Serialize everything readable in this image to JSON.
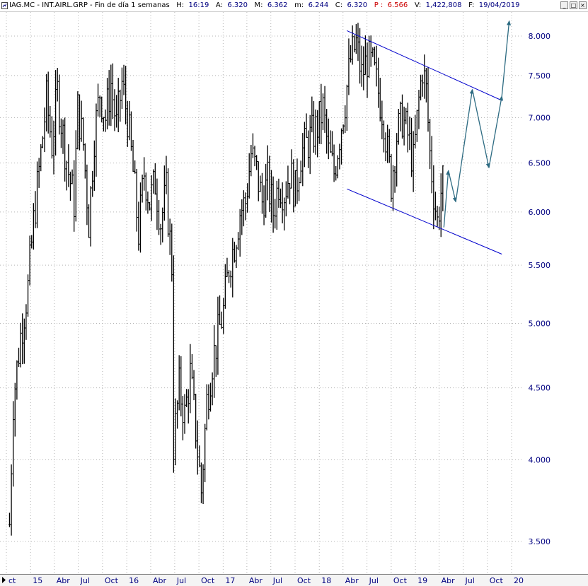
{
  "window": {
    "title_parts": {
      "symbol": "IAG.MC - INT.AIRL.GRP - Fin de día 1 semanas",
      "h_label": "H:",
      "h_value": "16:19",
      "a_label": "A:",
      "a_value": "6.320",
      "m_label": "M:",
      "m_value": "6.362",
      "mm_label": "m:",
      "mm_value": "6.244",
      "c_label": "C:",
      "c_value": "6.320",
      "p_label": "P :",
      "p_value": "6.566",
      "v_label": "V:",
      "v_value": "1,422,808",
      "f_label": "F:",
      "f_value": "19/04/2019"
    },
    "buttons": {
      "minimize": "_",
      "maximize": "□",
      "close": "×"
    }
  },
  "colors": {
    "background": "#ffffff",
    "grid": "#b4b4b4",
    "price": "#000000",
    "channel": "#0000cc",
    "projection": "#2d6b82",
    "axis_text": "#000080",
    "title_value": "#000080",
    "title_p": "#cc0000"
  },
  "chart_data": {
    "type": "ohlc",
    "scale": "log",
    "ylim": [
      3.4,
      8.35
    ],
    "yticks": [
      "3.500",
      "4.000",
      "4.500",
      "5.000",
      "5.500",
      "6.000",
      "6.500",
      "7.000",
      "7.500",
      "8.000"
    ],
    "ytick_values": [
      3.5,
      4.0,
      4.5,
      5.0,
      5.5,
      6.0,
      6.5,
      7.0,
      7.5,
      8.0
    ],
    "xticks": [
      {
        "label": "ct",
        "date": "2014-10"
      },
      {
        "label": "15",
        "date": "2015-01"
      },
      {
        "label": "Abr",
        "date": "2015-04"
      },
      {
        "label": "Jul",
        "date": "2015-07"
      },
      {
        "label": "Oct",
        "date": "2015-10"
      },
      {
        "label": "16",
        "date": "2016-01"
      },
      {
        "label": "Abr",
        "date": "2016-04"
      },
      {
        "label": "Jul",
        "date": "2016-07"
      },
      {
        "label": "Oct",
        "date": "2016-10"
      },
      {
        "label": "17",
        "date": "2017-01"
      },
      {
        "label": "Abr",
        "date": "2017-04"
      },
      {
        "label": "Jul",
        "date": "2017-07"
      },
      {
        "label": "Oct",
        "date": "2017-10"
      },
      {
        "label": "18",
        "date": "2018-01"
      },
      {
        "label": "Abr",
        "date": "2018-04"
      },
      {
        "label": "Jul",
        "date": "2018-07"
      },
      {
        "label": "Oct",
        "date": "2018-10"
      },
      {
        "label": "19",
        "date": "2019-01"
      },
      {
        "label": "Abr",
        "date": "2019-04"
      },
      {
        "label": "Jul",
        "date": "2019-07"
      },
      {
        "label": "Oct",
        "date": "2019-10"
      },
      {
        "label": "20",
        "date": "2020-01"
      }
    ],
    "price_path": [
      [
        "2014-10-13",
        3.6
      ],
      [
        "2014-10-27",
        4.4
      ],
      [
        "2014-11-24",
        4.9
      ],
      [
        "2014-12-22",
        5.3
      ],
      [
        "2015-01-12",
        5.9
      ],
      [
        "2015-02-09",
        6.6
      ],
      [
        "2015-03-02",
        7.2
      ],
      [
        "2015-03-23",
        6.7
      ],
      [
        "2015-04-13",
        7.3
      ],
      [
        "2015-05-04",
        6.8
      ],
      [
        "2015-05-25",
        6.4
      ],
      [
        "2015-06-15",
        6.1
      ],
      [
        "2015-06-29",
        7.1
      ],
      [
        "2015-07-20",
        6.7
      ],
      [
        "2015-08-10",
        5.9
      ],
      [
        "2015-08-31",
        6.8
      ],
      [
        "2015-09-21",
        7.3
      ],
      [
        "2015-10-12",
        7.0
      ],
      [
        "2015-11-02",
        7.4
      ],
      [
        "2015-11-23",
        6.9
      ],
      [
        "2015-12-14",
        7.4
      ],
      [
        "2016-01-04",
        7.0
      ],
      [
        "2016-01-25",
        6.4
      ],
      [
        "2016-02-15",
        5.8
      ],
      [
        "2016-03-07",
        6.4
      ],
      [
        "2016-03-28",
        6.1
      ],
      [
        "2016-04-18",
        6.3
      ],
      [
        "2016-05-09",
        5.9
      ],
      [
        "2016-05-30",
        6.2
      ],
      [
        "2016-06-20",
        5.5
      ],
      [
        "2016-06-27",
        4.1
      ],
      [
        "2016-07-18",
        4.5
      ],
      [
        "2016-08-08",
        4.3
      ],
      [
        "2016-08-29",
        4.6
      ],
      [
        "2016-09-19",
        4.2
      ],
      [
        "2016-10-10",
        3.8
      ],
      [
        "2016-10-31",
        4.4
      ],
      [
        "2016-11-21",
        4.7
      ],
      [
        "2016-12-12",
        4.9
      ],
      [
        "2017-01-02",
        5.1
      ],
      [
        "2017-01-23",
        5.5
      ],
      [
        "2017-02-13",
        5.7
      ],
      [
        "2017-03-06",
        6.0
      ],
      [
        "2017-03-27",
        6.1
      ],
      [
        "2017-04-17",
        6.6
      ],
      [
        "2017-05-08",
        6.4
      ],
      [
        "2017-05-29",
        6.1
      ],
      [
        "2017-06-19",
        6.3
      ],
      [
        "2017-07-10",
        6.0
      ],
      [
        "2017-07-31",
        6.3
      ],
      [
        "2017-08-21",
        6.2
      ],
      [
        "2017-09-11",
        6.4
      ],
      [
        "2017-10-02",
        6.2
      ],
      [
        "2017-10-23",
        6.6
      ],
      [
        "2017-11-13",
        6.7
      ],
      [
        "2017-12-04",
        6.8
      ],
      [
        "2017-12-25",
        6.9
      ],
      [
        "2018-01-15",
        7.1
      ],
      [
        "2018-02-05",
        6.6
      ],
      [
        "2018-02-26",
        6.4
      ],
      [
        "2018-03-19",
        6.8
      ],
      [
        "2018-04-09",
        7.2
      ],
      [
        "2018-04-30",
        7.7
      ],
      [
        "2018-05-21",
        7.9
      ],
      [
        "2018-06-11",
        7.5
      ],
      [
        "2018-07-02",
        7.7
      ],
      [
        "2018-07-23",
        7.6
      ],
      [
        "2018-08-13",
        7.3
      ],
      [
        "2018-09-03",
        7.0
      ],
      [
        "2018-09-17",
        6.6
      ],
      [
        "2018-10-01",
        6.3
      ],
      [
        "2018-10-22",
        6.8
      ],
      [
        "2018-11-12",
        7.0
      ],
      [
        "2018-12-03",
        6.8
      ],
      [
        "2018-12-24",
        6.5
      ],
      [
        "2019-01-14",
        7.2
      ],
      [
        "2019-01-28",
        7.6
      ],
      [
        "2019-02-11",
        7.3
      ],
      [
        "2019-02-25",
        6.6
      ],
      [
        "2019-03-11",
        6.2
      ],
      [
        "2019-03-25",
        5.9
      ],
      [
        "2019-04-08",
        6.2
      ],
      [
        "2019-04-19",
        6.32
      ]
    ],
    "channel_upper": [
      [
        "2018-04-16",
        8.07
      ],
      [
        "2019-11-25",
        7.2
      ]
    ],
    "channel_lower": [
      [
        "2018-04-16",
        6.23
      ],
      [
        "2019-11-25",
        5.6
      ]
    ],
    "projection": [
      [
        "2019-04-19",
        5.85
      ],
      [
        "2019-05-06",
        6.42
      ],
      [
        "2019-06-03",
        6.1
      ],
      [
        "2019-08-05",
        7.33
      ],
      [
        "2019-10-07",
        6.45
      ],
      [
        "2019-11-25",
        7.25
      ],
      [
        "2019-12-23",
        8.2
      ]
    ]
  }
}
